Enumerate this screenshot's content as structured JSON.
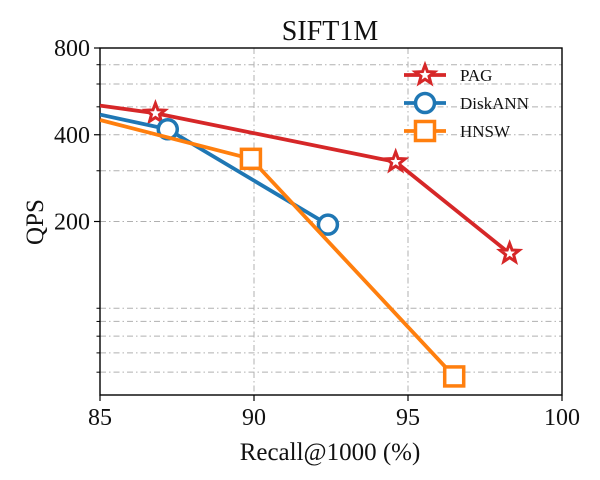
{
  "chart_data": {
    "type": "line",
    "title": "SIFT1M",
    "xlabel": "Recall@1000 (%)",
    "ylabel": "QPS",
    "xlim": [
      85,
      100
    ],
    "ylim": [
      50,
      800
    ],
    "x_ticks": [
      "85",
      "90",
      "95",
      "100"
    ],
    "y_ticks": [
      "200",
      "400",
      "800"
    ],
    "x_tick_values": [
      85,
      90,
      95,
      100
    ],
    "y_tick_values": [
      200,
      400,
      800
    ],
    "grid": true,
    "legend": "top-right",
    "series": [
      {
        "name": "PAG",
        "color": "#d62728",
        "marker": "star",
        "x": [
          85.0,
          86.8,
          94.6,
          98.3
        ],
        "y": [
          505,
          475,
          322,
          155
        ]
      },
      {
        "name": "DiskANN",
        "color": "#1f77b4",
        "marker": "circle",
        "x": [
          85.0,
          87.2,
          92.4
        ],
        "y": [
          470,
          418,
          195
        ]
      },
      {
        "name": "HNSW",
        "color": "#ff7f0e",
        "marker": "square",
        "x": [
          85.0,
          89.9,
          96.5
        ],
        "y": [
          450,
          330,
          58
        ]
      }
    ]
  }
}
